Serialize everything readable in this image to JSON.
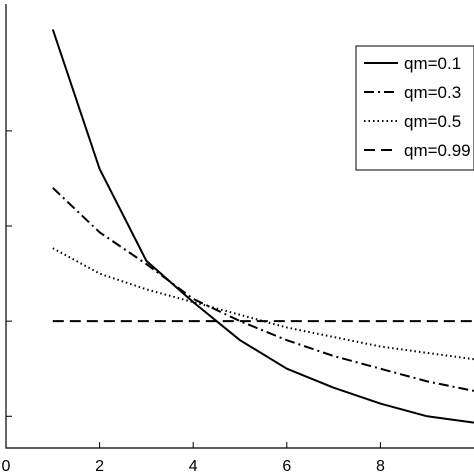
{
  "chart_data": {
    "type": "line",
    "title": "",
    "xlabel": "",
    "ylabel": "",
    "xlim": [
      0,
      10
    ],
    "ylim": [
      0.6,
      2.0
    ],
    "x_ticks": [
      0,
      2,
      4,
      6,
      8
    ],
    "y_ticks": [
      1.6,
      1.3,
      1.0,
      0.7
    ],
    "y_tick_labels_visible": false,
    "legend_position": "top-right",
    "series": [
      {
        "name": "qm=0.1",
        "style": "solid",
        "x": [
          1,
          2,
          3,
          4,
          5,
          6,
          7,
          8,
          9,
          10
        ],
        "y": [
          1.92,
          1.48,
          1.19,
          1.06,
          0.94,
          0.85,
          0.79,
          0.74,
          0.7,
          0.68
        ]
      },
      {
        "name": "qm=0.3",
        "style": "dashdot",
        "x": [
          1,
          2,
          3,
          4,
          5,
          6,
          7,
          8,
          9,
          10
        ],
        "y": [
          1.42,
          1.28,
          1.18,
          1.07,
          1.0,
          0.94,
          0.89,
          0.85,
          0.81,
          0.78
        ]
      },
      {
        "name": "qm=0.5",
        "style": "dotted",
        "x": [
          1,
          2,
          3,
          4,
          5,
          6,
          7,
          8,
          9,
          10
        ],
        "y": [
          1.23,
          1.15,
          1.1,
          1.06,
          1.02,
          0.98,
          0.95,
          0.92,
          0.9,
          0.88
        ]
      },
      {
        "name": "qm=0.99",
        "style": "dashed",
        "x": [
          1,
          2,
          3,
          4,
          5,
          6,
          7,
          8,
          9,
          10
        ],
        "y": [
          1.0,
          1.0,
          1.0,
          1.0,
          1.0,
          1.0,
          1.0,
          1.0,
          1.0,
          1.0
        ]
      }
    ]
  }
}
